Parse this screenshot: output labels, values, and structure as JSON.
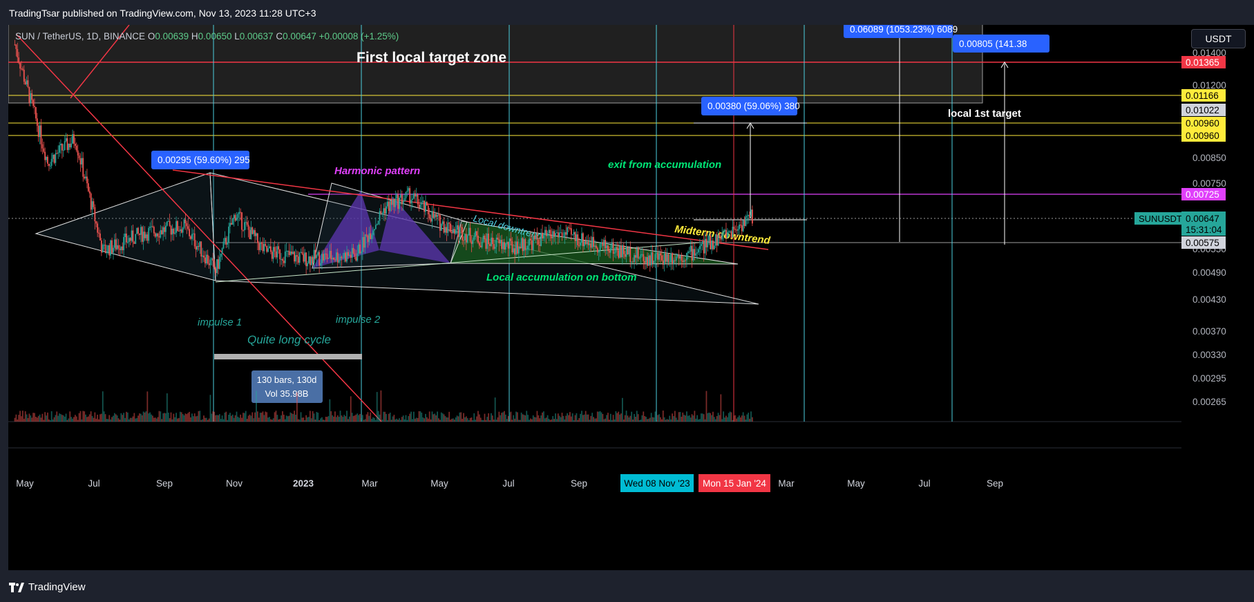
{
  "header": {
    "publisher_line": "TradingTsar published on TradingView.com, Nov 13, 2023 11:28 UTC+3"
  },
  "footer": {
    "brand": "TradingView"
  },
  "symbol": {
    "name": "SUN / TetherUS, 1D, BINANCE",
    "o_label": "O",
    "o": "0.00639",
    "h_label": "H",
    "h": "0.00650",
    "l_label": "L",
    "l": "0.00637",
    "c_label": "C",
    "c": "0.00647",
    "change": "+0.00008 (+1.25%)"
  },
  "currency": "USDT",
  "colors": {
    "up": "#26a69a",
    "down": "#ef5350",
    "accent": "#2962ff",
    "red_line": "#f23645",
    "yellow": "#ffeb3b",
    "magenta": "#e040fb",
    "cyan_line": "#4dd0e1"
  },
  "chart_data": {
    "type": "candlestick",
    "x_range": [
      "2022-04-20",
      "2024-09-30"
    ],
    "y_scale": "log",
    "y_range": [
      0.0024,
      0.0165
    ],
    "y_ticks": [
      "0.01400",
      "0.01200",
      "0.00850",
      "0.00750",
      "0.00550",
      "0.00490",
      "0.00430",
      "0.00370",
      "0.00330",
      "0.00295",
      "0.00265"
    ],
    "x_ticks": [
      "May",
      "Jul",
      "Sep",
      "Nov",
      "2023",
      "Mar",
      "May",
      "Jul",
      "Sep",
      "Mar",
      "May",
      "Jul",
      "Sep"
    ],
    "date_badges": [
      {
        "label": "Wed 08 Nov '23",
        "color": "#00bcd4"
      },
      {
        "label": "Mon 15 Jan '24",
        "color": "#f23645"
      }
    ],
    "price_badges": [
      {
        "label": "0.01365",
        "bg": "#f23645",
        "fg": "#ffffff"
      },
      {
        "label": "0.01166",
        "bg": "#ffeb3b",
        "fg": "#000000"
      },
      {
        "label": "0.01022",
        "bg": "#d1d4dc",
        "fg": "#000000"
      },
      {
        "label": "0.00960",
        "bg": "#ffeb3b",
        "fg": "#000000"
      },
      {
        "label": "0.00960",
        "bg": "#ffeb3b",
        "fg": "#000000"
      },
      {
        "label": "0.00725",
        "bg": "#e040fb",
        "fg": "#ffffff"
      },
      {
        "label": "0.00575",
        "bg": "#d1d4dc",
        "fg": "#000000"
      }
    ],
    "last_price": {
      "symbol": "SUNUSDT",
      "price": "0.00647",
      "countdown": "15:31:04"
    },
    "measure_labels": [
      {
        "text": "0.06089 (1053.23%) 6089"
      },
      {
        "text": "0.00805 (141.38"
      },
      {
        "text": "0.00380 (59.06%) 380"
      },
      {
        "text": "0.00295 (59.60%) 295"
      }
    ],
    "range_box": {
      "line1": "130 bars, 130d",
      "line2": "Vol 35.98B"
    },
    "annotations": [
      {
        "text": "First local target zone",
        "color": "#ffffff"
      },
      {
        "text": "local 1st target",
        "color": "#ffffff"
      },
      {
        "text": "Harmonic pattern",
        "color": "#e040fb"
      },
      {
        "text": "exit from accumulation",
        "color": "#00e676"
      },
      {
        "text": "Local downtrend",
        "color": "#4dd0e1"
      },
      {
        "text": "Midterm downtrend",
        "color": "#ffeb3b"
      },
      {
        "text": "Local accumulation on bottom",
        "color": "#00e676"
      },
      {
        "text": "impulse 1",
        "color": "#26a69a"
      },
      {
        "text": "impulse 2",
        "color": "#26a69a"
      },
      {
        "text": "Quite long cycle",
        "color": "#26a69a"
      }
    ],
    "key_series": {
      "name": "SUNUSDT approximate closes",
      "dates": [
        "2022-04-25",
        "2022-05-20",
        "2022-06-10",
        "2022-07-01",
        "2022-08-01",
        "2022-09-01",
        "2022-09-25",
        "2022-10-10",
        "2022-11-01",
        "2022-12-01",
        "2023-01-10",
        "2023-02-01",
        "2023-02-20",
        "2023-03-15",
        "2023-04-15",
        "2023-05-10",
        "2023-06-15",
        "2023-07-20",
        "2023-08-20",
        "2023-09-20",
        "2023-10-20",
        "2023-11-08"
      ],
      "values": [
        0.015,
        0.0085,
        0.0095,
        0.0055,
        0.006,
        0.0062,
        0.005,
        0.0066,
        0.0055,
        0.0053,
        0.0054,
        0.0068,
        0.0072,
        0.0063,
        0.0058,
        0.0056,
        0.006,
        0.0056,
        0.0053,
        0.0054,
        0.006,
        0.0065
      ]
    }
  }
}
